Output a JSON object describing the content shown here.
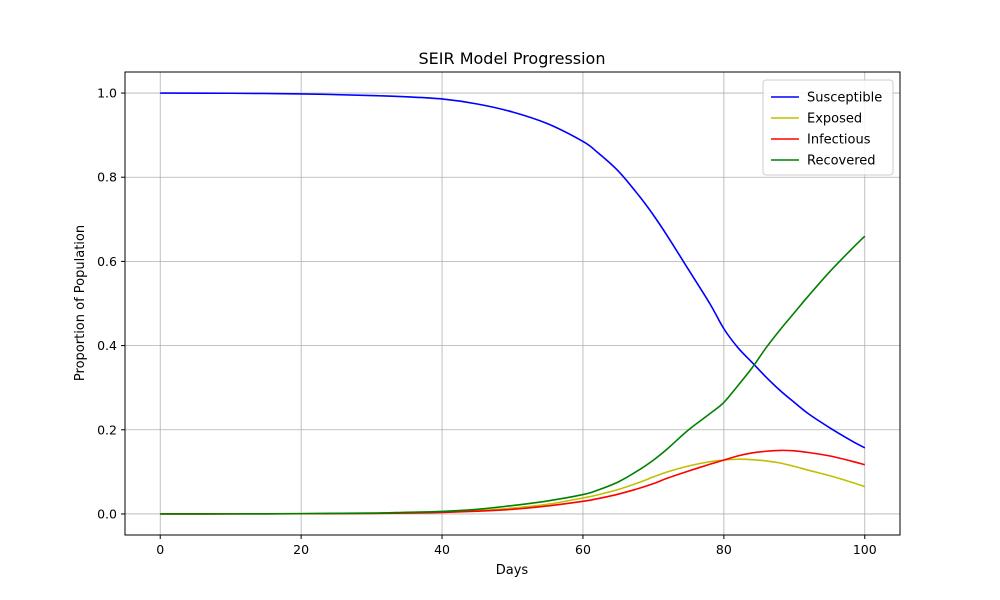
{
  "chart_data": {
    "type": "line",
    "title": "SEIR Model Progression",
    "xlabel": "Days",
    "ylabel": "Proportion of Population",
    "xlim": [
      -5,
      105
    ],
    "ylim": [
      -0.05,
      1.05
    ],
    "xticks": [
      0,
      20,
      40,
      60,
      80,
      100
    ],
    "xtick_labels": [
      "0",
      "20",
      "40",
      "60",
      "80",
      "100"
    ],
    "yticks": [
      0.0,
      0.2,
      0.4,
      0.6,
      0.8,
      1.0
    ],
    "ytick_labels": [
      "0.0",
      "0.2",
      "0.4",
      "0.6",
      "0.8",
      "1.0"
    ],
    "grid": true,
    "legend_position": "top-right",
    "x": [
      0,
      10,
      20,
      30,
      35,
      40,
      45,
      50,
      55,
      60,
      62,
      65,
      68,
      70,
      72,
      75,
      78,
      80,
      82,
      84,
      86,
      88,
      90,
      92,
      95,
      98,
      100
    ],
    "series": [
      {
        "name": "Susceptible",
        "color": "#0000ff",
        "values": [
          1.0,
          0.9995,
          0.998,
          0.994,
          0.991,
          0.986,
          0.974,
          0.955,
          0.927,
          0.885,
          0.86,
          0.815,
          0.755,
          0.71,
          0.66,
          0.58,
          0.5,
          0.44,
          0.395,
          0.36,
          0.325,
          0.293,
          0.265,
          0.238,
          0.205,
          0.175,
          0.157
        ]
      },
      {
        "name": "Exposed",
        "color": "#bfbf00",
        "values": [
          0.0,
          0.0002,
          0.0006,
          0.0015,
          0.0025,
          0.0045,
          0.008,
          0.014,
          0.023,
          0.038,
          0.045,
          0.058,
          0.075,
          0.088,
          0.1,
          0.114,
          0.124,
          0.128,
          0.13,
          0.129,
          0.126,
          0.121,
          0.113,
          0.104,
          0.091,
          0.076,
          0.065
        ]
      },
      {
        "name": "Infectious",
        "color": "#ff0000",
        "values": [
          0.0,
          0.0002,
          0.0005,
          0.0012,
          0.002,
          0.0035,
          0.0065,
          0.011,
          0.019,
          0.03,
          0.036,
          0.047,
          0.061,
          0.072,
          0.085,
          0.102,
          0.118,
          0.128,
          0.138,
          0.145,
          0.149,
          0.151,
          0.15,
          0.146,
          0.138,
          0.126,
          0.117
        ]
      },
      {
        "name": "Recovered",
        "color": "#008000",
        "values": [
          0.0,
          0.0002,
          0.0008,
          0.002,
          0.004,
          0.006,
          0.011,
          0.02,
          0.031,
          0.046,
          0.056,
          0.076,
          0.105,
          0.128,
          0.155,
          0.2,
          0.238,
          0.265,
          0.305,
          0.347,
          0.395,
          0.438,
          0.478,
          0.518,
          0.575,
          0.627,
          0.66
        ]
      }
    ]
  }
}
